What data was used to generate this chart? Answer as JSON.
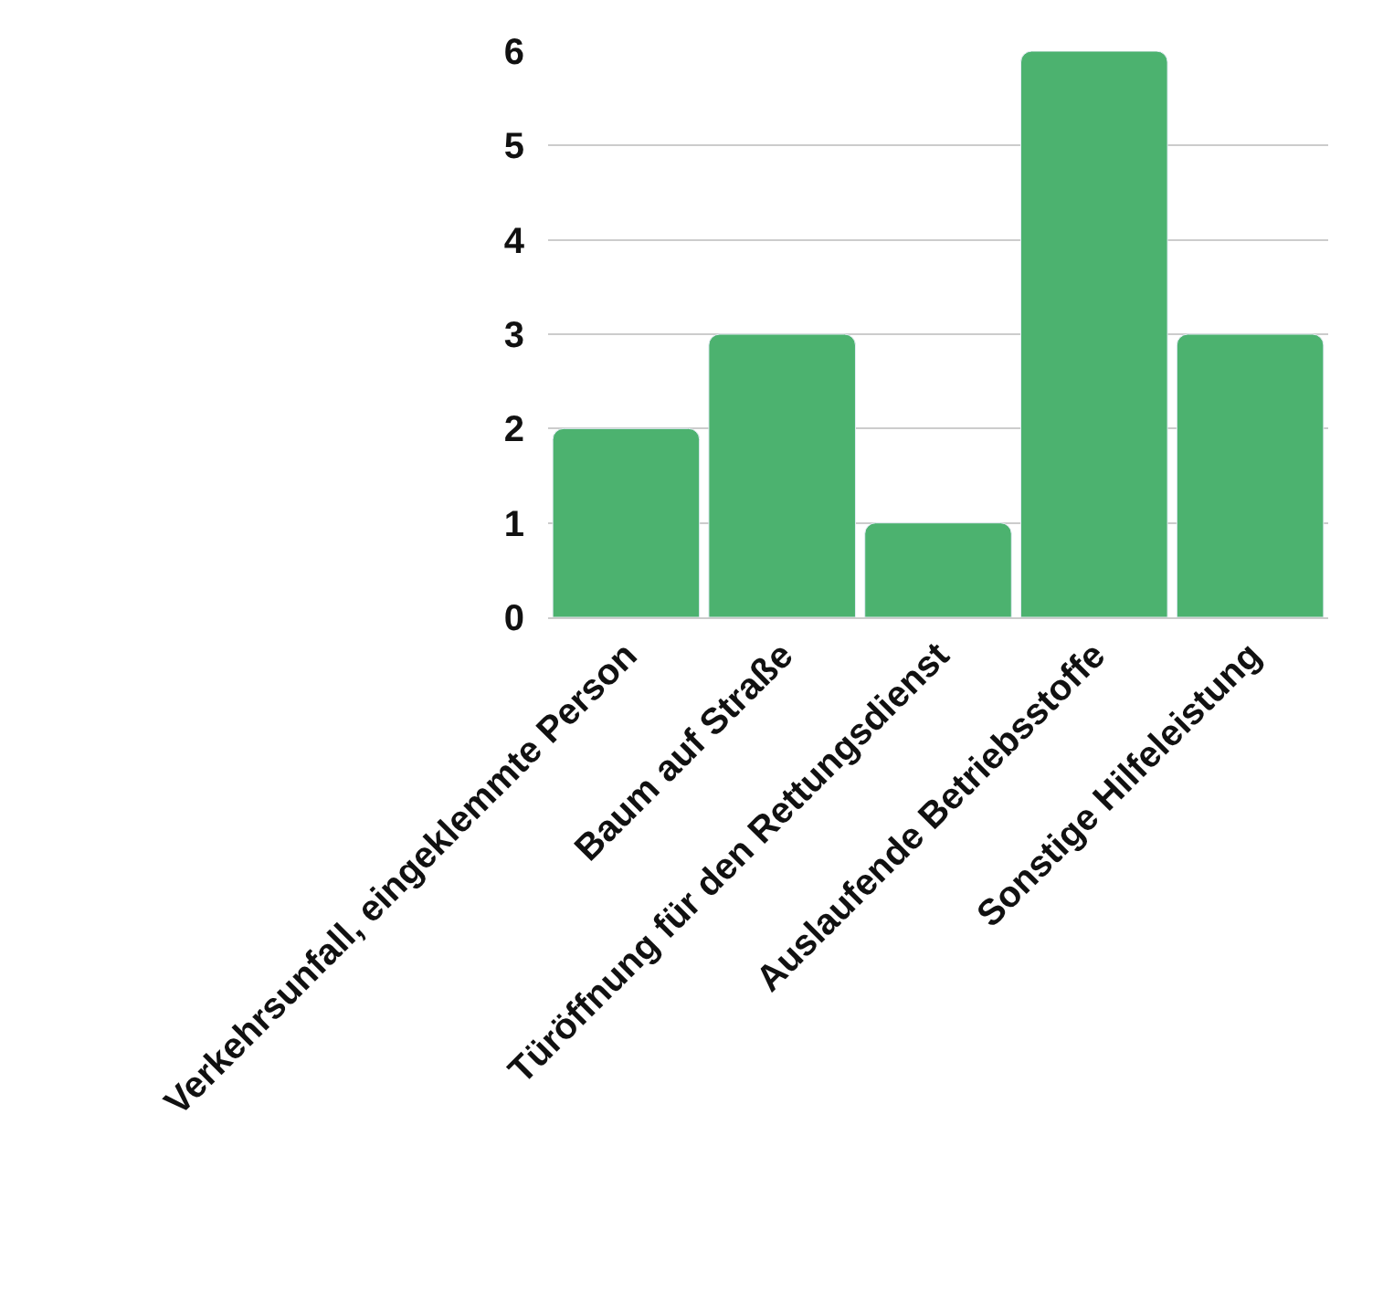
{
  "chart_data": {
    "type": "bar",
    "categories": [
      "Verkehrsunfall, eingeklemmte Person",
      "Baum auf Straße",
      "Türöffnung für den Rettungsdienst",
      "Auslaufende Betriebsstoffe",
      "Sonstige Hilfeleistung"
    ],
    "values": [
      2,
      3,
      1,
      6,
      3
    ],
    "color": "#4cb26f",
    "ylim": [
      0,
      6
    ],
    "yticks": [
      0,
      1,
      2,
      3,
      4,
      5,
      6
    ],
    "grid": "y",
    "legend": false
  }
}
